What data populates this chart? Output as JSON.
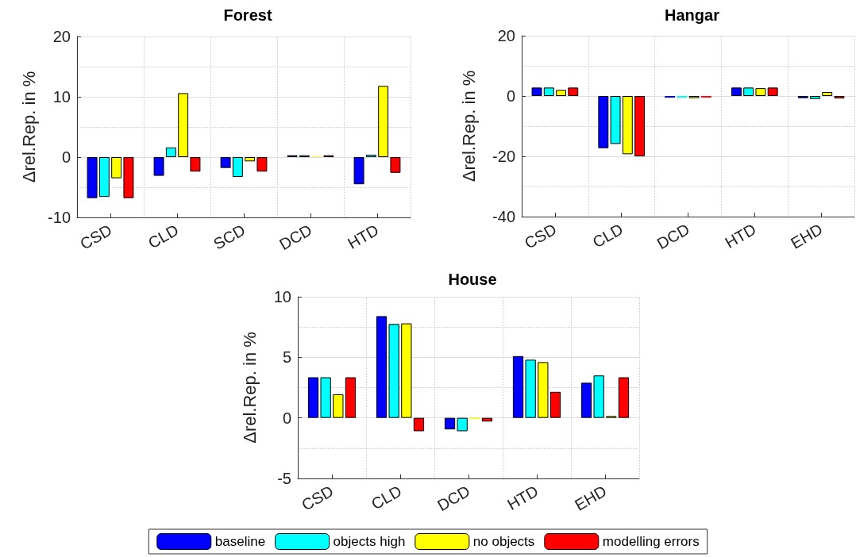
{
  "chart_data": [
    {
      "type": "bar",
      "title": "Forest",
      "ylabel": "Δrel.Rep. in %",
      "categories": [
        "CSD",
        "CLD",
        "SCD",
        "DCD",
        "HTD"
      ],
      "ylim": [
        -10,
        20
      ],
      "yticks": [
        -10,
        0,
        10,
        20
      ],
      "grid": true,
      "legend": false,
      "series": [
        {
          "color": "#0000ff",
          "values": [
            -6.8,
            -3.1,
            -1.8,
            0.3,
            -4.5
          ]
        },
        {
          "color": "#00ffff",
          "values": [
            -6.6,
            1.6,
            -3.3,
            0.3,
            0.4
          ]
        },
        {
          "color": "#ffff00",
          "values": [
            -3.5,
            10.6,
            -0.7,
            0.1,
            11.8
          ]
        },
        {
          "color": "#ff0000",
          "values": [
            -6.8,
            -2.4,
            -2.4,
            0.3,
            -2.6
          ]
        }
      ]
    },
    {
      "type": "bar",
      "title": "Hangar",
      "ylabel": "Δrel.Rep. in %",
      "categories": [
        "CSD",
        "CLD",
        "DCD",
        "HTD",
        "EHD"
      ],
      "ylim": [
        -40,
        20
      ],
      "yticks": [
        -40,
        -20,
        0,
        20
      ],
      "grid": true,
      "legend": false,
      "series": [
        {
          "color": "#0000ff",
          "values": [
            2.8,
            -17.3,
            -0.5,
            2.8,
            -0.7
          ]
        },
        {
          "color": "#00ffff",
          "values": [
            2.8,
            -15.9,
            -0.5,
            2.8,
            -1.0
          ]
        },
        {
          "color": "#ffff00",
          "values": [
            2.0,
            -19.3,
            -0.7,
            2.6,
            1.3
          ]
        },
        {
          "color": "#ff0000",
          "values": [
            2.8,
            -20,
            -0.5,
            2.8,
            -0.8
          ]
        }
      ]
    },
    {
      "type": "bar",
      "title": "House",
      "ylabel": "Δrel.Rep. in %",
      "categories": [
        "CSD",
        "CLD",
        "DCD",
        "HTD",
        "EHD"
      ],
      "ylim": [
        -5,
        10
      ],
      "yticks": [
        -5,
        0,
        5,
        10
      ],
      "grid": true,
      "legend": "bottom",
      "series": [
        {
          "name": "baseline",
          "color": "#0000ff",
          "values": [
            3.35,
            8.4,
            -0.95,
            5.1,
            2.9
          ]
        },
        {
          "name": "objects high",
          "color": "#00ffff",
          "values": [
            3.35,
            7.75,
            -1.1,
            4.8,
            3.5
          ]
        },
        {
          "name": "no objects",
          "color": "#ffff00",
          "values": [
            1.95,
            7.8,
            -0.1,
            4.6,
            0.15
          ]
        },
        {
          "name": "modelling errors",
          "color": "#ff0000",
          "values": [
            3.35,
            -1.1,
            -0.3,
            2.15,
            3.35
          ]
        }
      ]
    }
  ]
}
